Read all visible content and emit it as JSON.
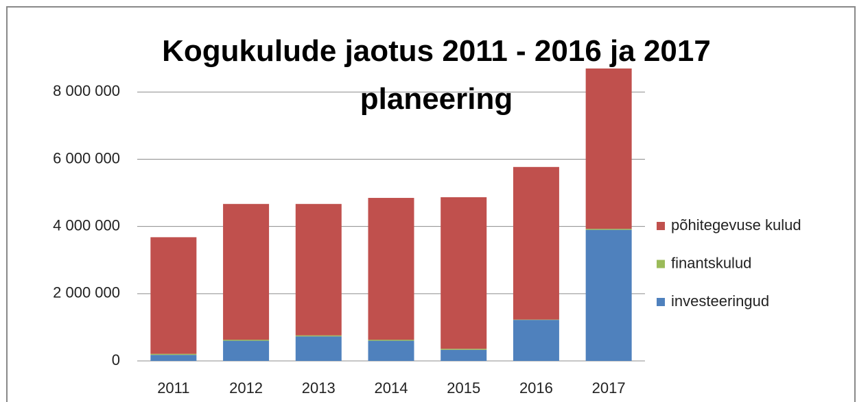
{
  "chart_data": {
    "type": "stacked_bar",
    "title": "Kogukulude jaotus 2011 - 2016 ja 2017 planeering",
    "categories": [
      "2011",
      "2012",
      "2013",
      "2014",
      "2015",
      "2016",
      "2017"
    ],
    "series": [
      {
        "name": "investeeringud",
        "color": "#4f81bd",
        "values": [
          180000,
          600000,
          730000,
          600000,
          330000,
          1220000,
          3900000
        ]
      },
      {
        "name": "finantskulud",
        "color": "#9bbb59",
        "values": [
          30000,
          30000,
          30000,
          30000,
          30000,
          10000,
          30000
        ]
      },
      {
        "name": "põhitegevuse kulud",
        "color": "#c0504d",
        "values": [
          3470000,
          4040000,
          3910000,
          4220000,
          4510000,
          4540000,
          4770000
        ]
      }
    ],
    "ylim": [
      0,
      8700000
    ],
    "yticks": [
      0,
      {
        "value": 2000000,
        "label": "2 000 000"
      },
      {
        "value": 4000000,
        "label": "4 000 000"
      },
      {
        "value": 6000000,
        "label": "6 000 000"
      },
      {
        "value": 8000000,
        "label": "8 000 000"
      }
    ],
    "grid": true,
    "legend": "right"
  }
}
